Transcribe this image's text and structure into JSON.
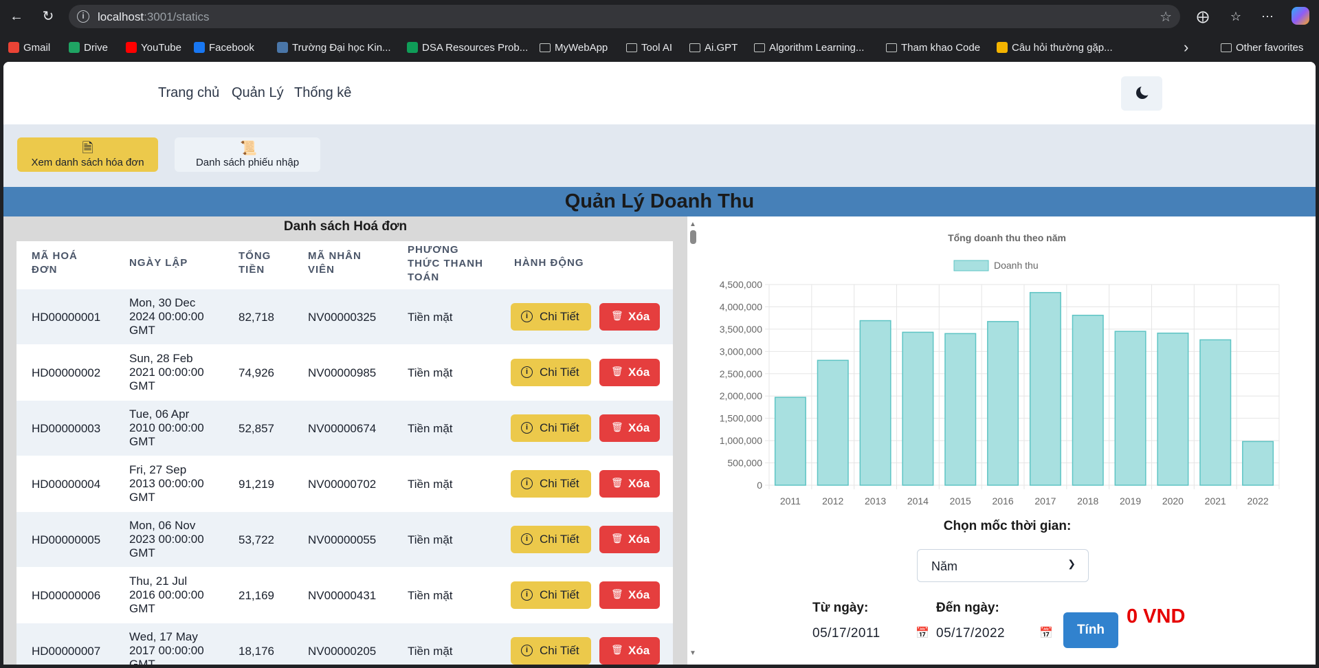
{
  "browser": {
    "url_host": "localhost",
    "url_path": ":3001/statics",
    "bookmarks": [
      {
        "label": "Gmail",
        "icon": "gmail-icon",
        "color": "#ea4335"
      },
      {
        "label": "Drive",
        "icon": "drive-icon",
        "color": "#1fa463"
      },
      {
        "label": "YouTube",
        "icon": "youtube-icon",
        "color": "#ff0000"
      },
      {
        "label": "Facebook",
        "icon": "facebook-icon",
        "color": "#1877f2"
      },
      {
        "label": "Trường Đại học Kin...",
        "icon": "university-icon",
        "color": "#4a76a8"
      },
      {
        "label": "DSA Resources Prob...",
        "icon": "sheets-icon",
        "color": "#0f9d58"
      },
      {
        "label": "MyWebApp",
        "icon": "folder-icon"
      },
      {
        "label": "Tool AI",
        "icon": "folder-icon"
      },
      {
        "label": "Ai.GPT",
        "icon": "folder-icon"
      },
      {
        "label": "Algorithm Learning...",
        "icon": "folder-icon"
      },
      {
        "label": "Tham khao Code",
        "icon": "folder-icon"
      },
      {
        "label": "Câu hỏi thường gặp...",
        "icon": "faq-icon",
        "color": "#f4b400"
      },
      {
        "label": "Other favorites",
        "icon": "folder-icon"
      }
    ]
  },
  "nav": {
    "home": "Trang chủ",
    "manage": "Quản Lý",
    "stats": "Thống kê"
  },
  "toolbar": {
    "invoices": "Xem danh sách hóa đơn",
    "receipts": "Danh sách phiếu nhập",
    "active_color": "#ecc94b"
  },
  "page_title": "Quản Lý Doanh Thu",
  "invoice_list": {
    "title": "Danh sách Hoá đơn",
    "headers": {
      "id": [
        "MÃ HOÁ",
        "ĐƠN"
      ],
      "date": [
        "NGÀY LẬP"
      ],
      "total": [
        "TỔNG",
        "TIỀN"
      ],
      "staff": [
        "MÃ NHÂN",
        "VIÊN"
      ],
      "method": [
        "PHƯƠNG",
        "THỨC THANH",
        "TOÁN"
      ],
      "actions": [
        "HÀNH ĐỘNG"
      ]
    },
    "detail_label": "Chi Tiết",
    "delete_label": "Xóa",
    "rows": [
      {
        "id": "HD00000001",
        "date": [
          "Mon, 30 Dec",
          "2024 00:00:00",
          "GMT"
        ],
        "total": "82,718",
        "staff": "NV00000325",
        "method": "Tiền mặt"
      },
      {
        "id": "HD00000002",
        "date": [
          "Sun, 28 Feb",
          "2021 00:00:00",
          "GMT"
        ],
        "total": "74,926",
        "staff": "NV00000985",
        "method": "Tiền mặt"
      },
      {
        "id": "HD00000003",
        "date": [
          "Tue, 06 Apr",
          "2010 00:00:00",
          "GMT"
        ],
        "total": "52,857",
        "staff": "NV00000674",
        "method": "Tiền mặt"
      },
      {
        "id": "HD00000004",
        "date": [
          "Fri, 27 Sep",
          "2013 00:00:00",
          "GMT"
        ],
        "total": "91,219",
        "staff": "NV00000702",
        "method": "Tiền mặt"
      },
      {
        "id": "HD00000005",
        "date": [
          "Mon, 06 Nov",
          "2023 00:00:00",
          "GMT"
        ],
        "total": "53,722",
        "staff": "NV00000055",
        "method": "Tiền mặt"
      },
      {
        "id": "HD00000006",
        "date": [
          "Thu, 21 Jul",
          "2016 00:00:00",
          "GMT"
        ],
        "total": "21,169",
        "staff": "NV00000431",
        "method": "Tiền mặt"
      },
      {
        "id": "HD00000007",
        "date": [
          "Wed, 17 May",
          "2017 00:00:00",
          "GMT"
        ],
        "total": "18,176",
        "staff": "NV00000205",
        "method": "Tiền mặt"
      }
    ]
  },
  "chart_data": {
    "type": "bar",
    "title": "Tổng doanh thu theo năm",
    "categories": [
      "2011",
      "2012",
      "2013",
      "2014",
      "2015",
      "2016",
      "2017",
      "2018",
      "2019",
      "2020",
      "2021",
      "2022"
    ],
    "series": [
      {
        "name": "Doanh thu",
        "values": [
          1970000,
          2800000,
          3690000,
          3430000,
          3400000,
          3670000,
          4320000,
          3810000,
          3450000,
          3410000,
          3260000,
          980000
        ]
      }
    ],
    "ylim": [
      0,
      4500000
    ],
    "yticks": [
      "4,500,000",
      "4,000,000",
      "3,500,000",
      "3,000,000",
      "2,500,000",
      "2,000,000",
      "1,500,000",
      "1,000,000",
      "500,000",
      "0"
    ],
    "grid": true,
    "legend": "top",
    "bar_fill": "#a8e0e0",
    "bar_stroke": "#5ec4c4"
  },
  "filter": {
    "label": "Chọn mốc thời gian:",
    "period": "Năm",
    "from_label": "Từ ngày:",
    "from_value": "05/17/2011",
    "to_label": "Đến ngày:",
    "to_value": "05/17/2022",
    "calc_label": "Tính",
    "total": "0 VND"
  }
}
